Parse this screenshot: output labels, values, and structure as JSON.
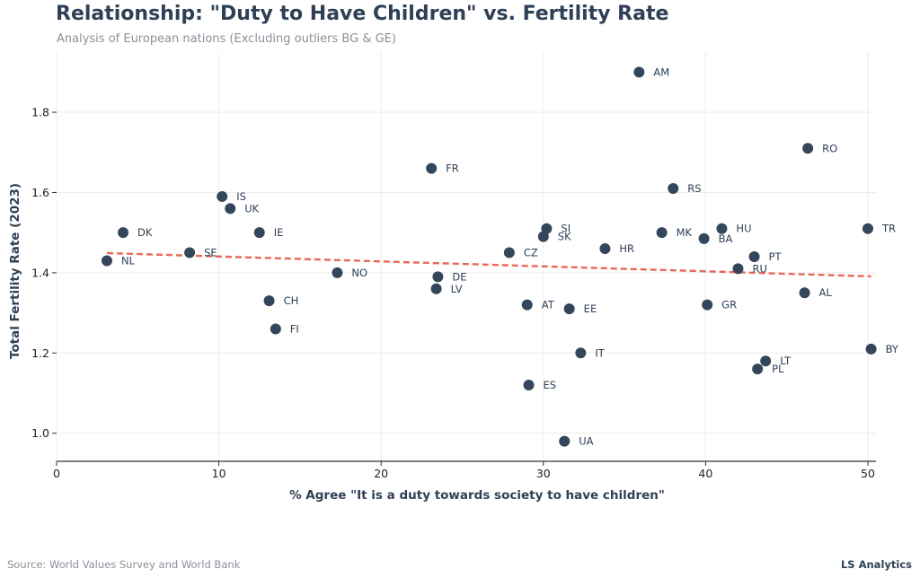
{
  "colors": {
    "point": "#34465b",
    "trend": "#e8695a",
    "grid": "#ececec",
    "axis": "#333333",
    "title": "#2f4056",
    "muted": "#8a9099"
  },
  "footer": {
    "source": "Source: World Values Survey and World Bank",
    "brand": "LS Analytics"
  },
  "chart_data": {
    "type": "scatter",
    "title": "Relationship: \"Duty to Have Children\" vs. Fertility Rate",
    "subtitle": "Analysis of European nations (Excluding outliers BG & GE)",
    "xlabel": "% Agree \"It is a duty towards society to have children\"",
    "ylabel": "Total Fertility Rate (2023)",
    "xlim": [
      0,
      50.5
    ],
    "ylim": [
      0.93,
      1.95
    ],
    "xticks": [
      0,
      10,
      20,
      30,
      40,
      50
    ],
    "yticks": [
      1.0,
      1.2,
      1.4,
      1.6,
      1.8
    ],
    "ytick_labels": [
      "1.0",
      "1.2",
      "1.4",
      "1.6",
      "1.8"
    ],
    "grid": true,
    "points": [
      {
        "label": "AM",
        "x": 35.9,
        "y": 1.9
      },
      {
        "label": "RO",
        "x": 46.3,
        "y": 1.71
      },
      {
        "label": "FR",
        "x": 23.1,
        "y": 1.66
      },
      {
        "label": "RS",
        "x": 38.0,
        "y": 1.61
      },
      {
        "label": "IS",
        "x": 10.2,
        "y": 1.59
      },
      {
        "label": "UK",
        "x": 10.7,
        "y": 1.56
      },
      {
        "label": "DK",
        "x": 4.1,
        "y": 1.5
      },
      {
        "label": "IE",
        "x": 12.5,
        "y": 1.5
      },
      {
        "label": "SI",
        "x": 30.2,
        "y": 1.51
      },
      {
        "label": "SK",
        "x": 30.0,
        "y": 1.49
      },
      {
        "label": "MK",
        "x": 37.3,
        "y": 1.5
      },
      {
        "label": "HU",
        "x": 41.0,
        "y": 1.51
      },
      {
        "label": "BA",
        "x": 39.9,
        "y": 1.485
      },
      {
        "label": "TR",
        "x": 50.0,
        "y": 1.51
      },
      {
        "label": "HR",
        "x": 33.8,
        "y": 1.46
      },
      {
        "label": "CZ",
        "x": 27.9,
        "y": 1.45
      },
      {
        "label": "SE",
        "x": 8.2,
        "y": 1.45
      },
      {
        "label": "NL",
        "x": 3.1,
        "y": 1.43
      },
      {
        "label": "PT",
        "x": 43.0,
        "y": 1.44
      },
      {
        "label": "RU",
        "x": 42.0,
        "y": 1.41
      },
      {
        "label": "NO",
        "x": 17.3,
        "y": 1.4
      },
      {
        "label": "DE",
        "x": 23.5,
        "y": 1.39
      },
      {
        "label": "LV",
        "x": 23.4,
        "y": 1.36
      },
      {
        "label": "AL",
        "x": 46.1,
        "y": 1.35
      },
      {
        "label": "CH",
        "x": 13.1,
        "y": 1.33
      },
      {
        "label": "AT",
        "x": 29.0,
        "y": 1.32
      },
      {
        "label": "GR",
        "x": 40.1,
        "y": 1.32
      },
      {
        "label": "EE",
        "x": 31.6,
        "y": 1.31
      },
      {
        "label": "FI",
        "x": 13.5,
        "y": 1.26
      },
      {
        "label": "BY",
        "x": 50.2,
        "y": 1.21
      },
      {
        "label": "IT",
        "x": 32.3,
        "y": 1.2
      },
      {
        "label": "LT",
        "x": 43.7,
        "y": 1.18
      },
      {
        "label": "PL",
        "x": 43.2,
        "y": 1.16
      },
      {
        "label": "ES",
        "x": 29.1,
        "y": 1.12
      },
      {
        "label": "UA",
        "x": 31.3,
        "y": 0.98
      }
    ],
    "trendline": {
      "x": [
        3.1,
        50.2
      ],
      "y": [
        1.449,
        1.391
      ]
    }
  }
}
